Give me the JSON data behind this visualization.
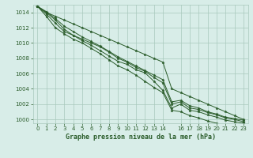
{
  "title": "Graphe pression niveau de la mer (hPa)",
  "bg_color": "#d8ede8",
  "grid_color": "#a8c8bc",
  "line_color": "#2a5c2a",
  "ylim": [
    999.5,
    1015.0
  ],
  "xlim": [
    -0.5,
    23.5
  ],
  "yticks": [
    1000,
    1002,
    1004,
    1006,
    1008,
    1010,
    1012,
    1014
  ],
  "xticks": [
    0,
    1,
    2,
    3,
    4,
    5,
    6,
    7,
    8,
    9,
    10,
    11,
    12,
    13,
    14,
    16,
    17,
    18,
    19,
    20,
    21,
    22,
    23
  ],
  "series": [
    [
      1014.8,
      1014.1,
      1013.2,
      1012.2,
      1011.5,
      1010.8,
      1010.2,
      1009.6,
      1008.9,
      1008.2,
      1007.6,
      1007.0,
      1006.4,
      1005.8,
      1005.2,
      1002.3,
      1002.5,
      1001.8,
      1001.5,
      1001.0,
      1000.7,
      1000.3,
      1000.1,
      999.9
    ],
    [
      1014.8,
      1014.0,
      1013.0,
      1011.8,
      1011.0,
      1010.5,
      1010.0,
      1009.5,
      1008.8,
      1008.0,
      1007.5,
      1006.8,
      1006.3,
      1005.5,
      1004.8,
      1002.0,
      1002.3,
      1001.5,
      1001.3,
      1000.9,
      1000.6,
      1000.2,
      1000.0,
      999.7
    ],
    [
      1014.8,
      1013.8,
      1012.6,
      1011.5,
      1011.0,
      1010.3,
      1009.7,
      1009.0,
      1008.3,
      1007.6,
      1007.2,
      1006.5,
      1006.1,
      1005.0,
      1003.8,
      1001.5,
      1002.0,
      1001.2,
      1001.0,
      1000.6,
      1000.3,
      999.9,
      999.7,
      999.5
    ],
    [
      1014.8,
      1013.5,
      1012.0,
      1011.2,
      1010.5,
      1010.0,
      1009.3,
      1008.6,
      1007.8,
      1007.0,
      1006.5,
      1005.8,
      1005.0,
      1004.2,
      1003.5,
      1001.2,
      1001.0,
      1000.5,
      1000.2,
      999.8,
      999.5,
      999.2,
      999.0,
      999.6
    ],
    [
      1014.8,
      1014.0,
      1013.5,
      1013.0,
      1012.5,
      1012.0,
      1011.5,
      1011.0,
      1010.5,
      1010.0,
      1009.5,
      1009.0,
      1008.5,
      1008.0,
      1007.5,
      1004.0,
      1003.5,
      1003.0,
      1002.5,
      1002.0,
      1001.5,
      1001.0,
      1000.5,
      1000.0
    ]
  ]
}
